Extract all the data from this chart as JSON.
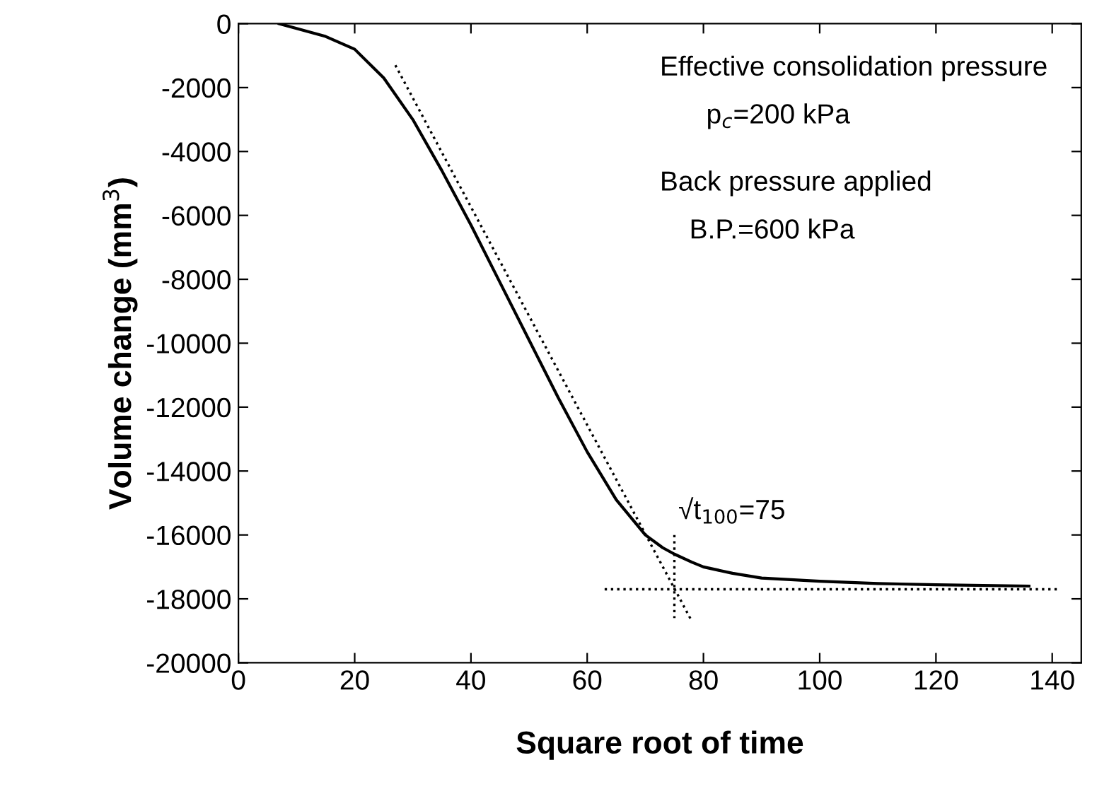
{
  "chart_data": {
    "type": "line",
    "xlabel": "Square root of time",
    "ylabel": "Volume change (mm$^{3}$)",
    "xlim": [
      0,
      145
    ],
    "ylim": [
      -20000,
      0
    ],
    "xticks": [
      0,
      20,
      40,
      60,
      80,
      100,
      120,
      140
    ],
    "yticks": [
      -20000,
      -18000,
      -16000,
      -14000,
      -12000,
      -10000,
      -8000,
      -6000,
      -4000,
      -2000,
      0
    ],
    "grid": false,
    "legend": false,
    "marker": "none",
    "series": [
      {
        "color": "#000000",
        "line_style": "solid",
        "x": [
          7,
          10,
          15,
          20,
          25,
          30,
          35,
          40,
          45,
          50,
          55,
          60,
          65,
          70,
          73,
          75,
          78,
          80,
          85,
          90,
          100,
          110,
          120,
          136
        ],
        "values": [
          0,
          -150,
          -400,
          -800,
          -1700,
          -3000,
          -4600,
          -6300,
          -8100,
          -9900,
          -11700,
          -13400,
          -14900,
          -16000,
          -16400,
          -16600,
          -16850,
          -17000,
          -17200,
          -17350,
          -17450,
          -17520,
          -17560,
          -17600
        ]
      },
      {
        "color": "#000000",
        "line_style": "dotted",
        "x": [
          27,
          78
        ],
        "values": [
          -1300,
          -18700
        ]
      },
      {
        "color": "#000000",
        "line_style": "dotted",
        "x": [
          63,
          141
        ],
        "values": [
          -17700,
          -17700
        ]
      },
      {
        "color": "#000000",
        "line_style": "dotted",
        "x": [
          75,
          75
        ],
        "values": [
          -16000,
          -18600
        ]
      }
    ],
    "annotations": [
      "Effective consolidation pressure",
      "p$_{c}$=200 kPa",
      "Back pressure applied",
      "B.P.=600 kPa",
      {
        "text": "√t$_{100}$=75",
        "x": 75,
        "y": -16000
      }
    ]
  }
}
